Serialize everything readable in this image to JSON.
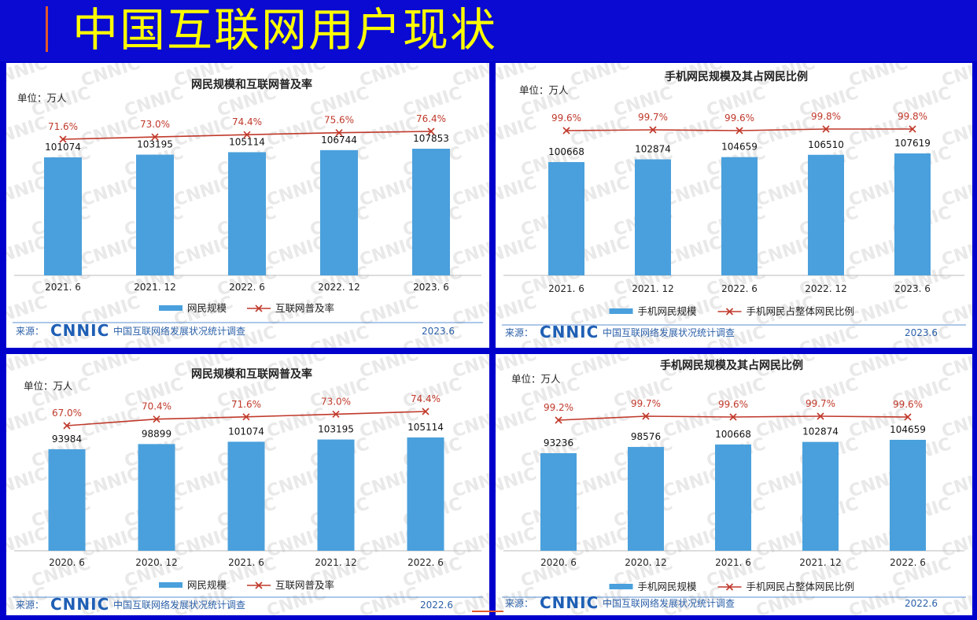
{
  "page": {
    "title": "中国互联网用户现状"
  },
  "chart_data": [
    {
      "type": "bar",
      "title": "网民规模和互联网普及率",
      "unit_label": "单位：万人",
      "categories": [
        "2021. 6",
        "2021. 12",
        "2022. 6",
        "2022. 12",
        "2023. 6"
      ],
      "series": [
        {
          "name": "网民规模",
          "type": "bar",
          "values": [
            101074,
            103195,
            105114,
            106744,
            107853
          ],
          "labels": [
            "101074",
            "103195",
            "105114",
            "106744",
            "107853"
          ],
          "color": "#4aa0dc"
        },
        {
          "name": "互联网普及率",
          "type": "line",
          "values": [
            71.6,
            73.0,
            74.4,
            75.6,
            76.4
          ],
          "labels": [
            "71.6%",
            "73.0%",
            "74.4%",
            "75.6%",
            "76.4%"
          ],
          "color": "#c0392b"
        }
      ],
      "source_label": "来源：",
      "source_org": "CNNIC",
      "source_text": "中国互联网络发展状况统计调查",
      "date": "2023.6",
      "watermark": "CNNIC"
    },
    {
      "type": "bar",
      "title": "手机网民规模及其占网民比例",
      "unit_label": "单位：万人",
      "categories": [
        "2021. 6",
        "2021. 12",
        "2022. 6",
        "2022. 12",
        "2023. 6"
      ],
      "series": [
        {
          "name": "手机网民规模",
          "type": "bar",
          "values": [
            100668,
            102874,
            104659,
            106510,
            107619
          ],
          "labels": [
            "100668",
            "102874",
            "104659",
            "106510",
            "107619"
          ],
          "color": "#4aa0dc"
        },
        {
          "name": "手机网民占整体网民比例",
          "type": "line",
          "values": [
            99.6,
            99.7,
            99.6,
            99.8,
            99.8
          ],
          "labels": [
            "99.6%",
            "99.7%",
            "99.6%",
            "99.8%",
            "99.8%"
          ],
          "color": "#c0392b"
        }
      ],
      "source_label": "来源：",
      "source_org": "CNNIC",
      "source_text": "中国互联网络发展状况统计调查",
      "date": "2023.6",
      "watermark": "CNNIC"
    },
    {
      "type": "bar",
      "title": "网民规模和互联网普及率",
      "unit_label": "单位：万人",
      "categories": [
        "2020. 6",
        "2020. 12",
        "2021. 6",
        "2021. 12",
        "2022. 6"
      ],
      "series": [
        {
          "name": "网民规模",
          "type": "bar",
          "values": [
            93984,
            98899,
            101074,
            103195,
            105114
          ],
          "labels": [
            "93984",
            "98899",
            "101074",
            "103195",
            "105114"
          ],
          "color": "#4aa0dc"
        },
        {
          "name": "互联网普及率",
          "type": "line",
          "values": [
            67.0,
            70.4,
            71.6,
            73.0,
            74.4
          ],
          "labels": [
            "67.0%",
            "70.4%",
            "71.6%",
            "73.0%",
            "74.4%"
          ],
          "color": "#c0392b"
        }
      ],
      "source_label": "来源：",
      "source_org": "CNNIC",
      "source_text": "中国互联网络发展状况统计调查",
      "date": "2022.6",
      "watermark": "CNNIC"
    },
    {
      "type": "bar",
      "title": "手机网民规模及其占网民比例",
      "unit_label": "单位：万人",
      "categories": [
        "2020. 6",
        "2020. 12",
        "2021. 6",
        "2021. 12",
        "2022. 6"
      ],
      "series": [
        {
          "name": "手机网民规模",
          "type": "bar",
          "values": [
            93236,
            98576,
            100668,
            102874,
            104659
          ],
          "labels": [
            "93236",
            "98576",
            "100668",
            "102874",
            "104659"
          ],
          "color": "#4aa0dc"
        },
        {
          "name": "手机网民占整体网民比例",
          "type": "line",
          "values": [
            99.2,
            99.7,
            99.6,
            99.7,
            99.6
          ],
          "labels": [
            "99.2%",
            "99.7%",
            "99.6%",
            "99.7%",
            "99.6%"
          ],
          "color": "#c0392b"
        }
      ],
      "source_label": "来源：",
      "source_org": "CNNIC",
      "source_text": "中国互联网络发展状况统计调查",
      "date": "2022.6",
      "watermark": "CNNIC"
    }
  ]
}
